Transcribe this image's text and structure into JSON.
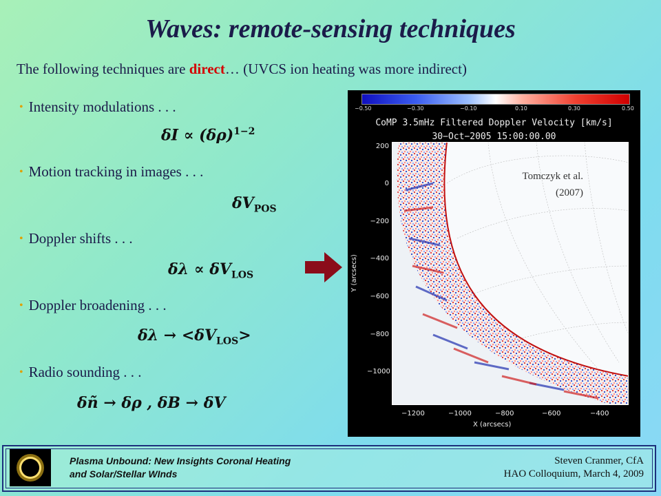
{
  "slide": {
    "title": "Waves: remote-sensing techniques",
    "subtitle_pre": "The following techniques are ",
    "subtitle_emph": "direct",
    "subtitle_post": "… (UVCS ion heating was more indirect)"
  },
  "bullets": [
    {
      "label": "Intensity modulations . . .",
      "formula": "δI  ∝  (δρ)",
      "formula_sup": "1−2"
    },
    {
      "label": "Motion tracking in images . . .",
      "formula": "δV",
      "formula_sub": "POS"
    },
    {
      "label": "Doppler shifts . . .",
      "formula": "δλ  ∝  δV",
      "formula_sub": "LOS"
    },
    {
      "label": "Doppler broadening . . .",
      "formula": "δλ  →  <δV",
      "formula_sub": "LOS",
      "formula_post": ">"
    },
    {
      "label": "Radio sounding . . .",
      "formula": "δñ  →  δρ , δB  →  δV"
    }
  ],
  "figure": {
    "colorbar_ticks": [
      "−0.50",
      "−0.30",
      "−0.10",
      "0.10",
      "0.30",
      "0.50"
    ],
    "title_line1": "CoMP 3.5mHz Filtered Doppler Velocity [km/s]",
    "title_line2": "30−Oct−2005 15:00:00.00",
    "y_ticks": [
      "200",
      "0",
      "−200",
      "−400",
      "−600",
      "−800",
      "−1000"
    ],
    "x_ticks": [
      "−1200",
      "−1000",
      "−800",
      "−600",
      "−400"
    ],
    "ylabel": "Y (arcsecs)",
    "xlabel": "X (arcsecs)",
    "credit_line1": "Tomczyk et al.",
    "credit_line2": "(2007)"
  },
  "footer": {
    "left_line1": "Plasma Unbound:  New Insights Coronal Heating",
    "left_line2": "and Solar/Stellar WInds",
    "right_line1": "Steven Cranmer,  CfA",
    "right_line2": "HAO Colloquium, March 4, 2009"
  },
  "colors": {
    "emphasis": "#d40000",
    "arrow": "#8b0d1a",
    "footer_border": "#1c2f7c"
  }
}
